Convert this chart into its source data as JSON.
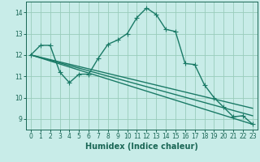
{
  "xlabel": "Humidex (Indice chaleur)",
  "background_color": "#c8ece8",
  "grid_color": "#99ccbb",
  "line_color": "#1a7a66",
  "xlim": [
    -0.5,
    23.5
  ],
  "ylim": [
    8.5,
    14.5
  ],
  "xticks": [
    0,
    1,
    2,
    3,
    4,
    5,
    6,
    7,
    8,
    9,
    10,
    11,
    12,
    13,
    14,
    15,
    16,
    17,
    18,
    19,
    20,
    21,
    22,
    23
  ],
  "yticks": [
    9,
    10,
    11,
    12,
    13,
    14
  ],
  "lines": [
    {
      "x": [
        0,
        1,
        2,
        3,
        4,
        5,
        6,
        7,
        8,
        9,
        10,
        11,
        12,
        13,
        14,
        15,
        16,
        17,
        18,
        19,
        20,
        21,
        22,
        23
      ],
      "y": [
        12.0,
        12.45,
        12.45,
        11.2,
        10.7,
        11.1,
        11.1,
        11.85,
        12.5,
        12.7,
        13.0,
        13.75,
        14.2,
        13.9,
        13.2,
        13.1,
        11.6,
        11.55,
        10.6,
        10.0,
        9.55,
        9.1,
        9.15,
        8.75
      ]
    },
    {
      "x": [
        0,
        23
      ],
      "y": [
        12.0,
        9.5
      ]
    },
    {
      "x": [
        0,
        23
      ],
      "y": [
        12.0,
        9.15
      ]
    },
    {
      "x": [
        0,
        23
      ],
      "y": [
        12.0,
        8.75
      ]
    }
  ],
  "markers": [
    true,
    false,
    false,
    false
  ],
  "marker": "+",
  "marker_size": 4,
  "linewidth": 1.0,
  "font_color": "#1a6655",
  "xlabel_fontsize": 7,
  "tick_fontsize": 5.5
}
